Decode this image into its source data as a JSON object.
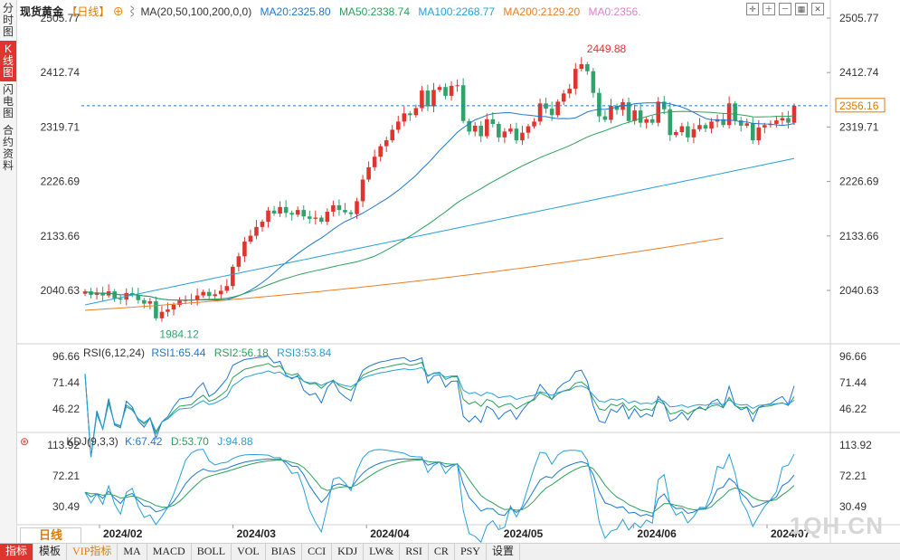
{
  "side_tabs": [
    {
      "label": "分时图"
    },
    {
      "label": "K线图",
      "active": true
    },
    {
      "label": "闪电图"
    },
    {
      "label": "合约资料"
    }
  ],
  "header": {
    "title": "现货黄金",
    "period_tag": "【日线】",
    "ma_label": "MA(20,50,100,200,0,0)",
    "ma20": "MA20:2325.80",
    "ma50": "MA50:2338.74",
    "ma100": "MA100:2268.77",
    "ma200": "MA200:2129.20",
    "ma0": "MA0:2356."
  },
  "rsi_header": {
    "label": "RSI(6,12,24)",
    "rsi1": "RSI1:65.44",
    "rsi2": "RSI2:56.18",
    "rsi3": "RSI3:53.84"
  },
  "kdj_header": {
    "label": "KDJ(9,3,3)",
    "k": "K:67.42",
    "d": "D:53.70",
    "j": "J:94.88"
  },
  "period_button": "日线",
  "watermark": "1QH.CN",
  "toolbar": [
    {
      "label": "指标",
      "style": "red"
    },
    {
      "label": "模板"
    },
    {
      "label": "VIP指标",
      "style": "orange"
    },
    {
      "label": "MA"
    },
    {
      "label": "MACD"
    },
    {
      "label": "BOLL"
    },
    {
      "label": "VOL"
    },
    {
      "label": "BIAS"
    },
    {
      "label": "CCI"
    },
    {
      "label": "KDJ"
    },
    {
      "label": "LW&"
    },
    {
      "label": "RSI"
    },
    {
      "label": "CR"
    },
    {
      "label": "PSY"
    },
    {
      "label": "设置"
    }
  ],
  "colors": {
    "up": "#e0342f",
    "down": "#2fa36b",
    "ma20": "#1f77d0",
    "ma50": "#2ca05a",
    "ma100": "#26a0d8",
    "ma200": "#ef7d22",
    "price_line": "#1f77d0"
  },
  "chart_data": {
    "type": "candlestick",
    "price_axis_ticks": [
      "2505.77",
      "2412.74",
      "2319.71",
      "2226.69",
      "2133.66",
      "2040.63"
    ],
    "price_range": [
      2505.77,
      2040.63
    ],
    "time_labels": [
      "2024/02",
      "2024/03",
      "2024/04",
      "2024/05",
      "2024/06",
      "2024/07"
    ],
    "current_price": "2356.16",
    "high_label": "2449.88",
    "low_label": "1984.12",
    "high_value": 2449.88,
    "low_value": 1984.12,
    "closes": [
      2039,
      2033,
      2037,
      2032,
      2039,
      2027,
      2025,
      2036,
      2033,
      2024,
      2018,
      2022,
      1993,
      2004,
      2008,
      2016,
      2023,
      2024,
      2025,
      2032,
      2038,
      2031,
      2034,
      2040,
      2048,
      2081,
      2099,
      2124,
      2134,
      2149,
      2158,
      2177,
      2172,
      2183,
      2173,
      2170,
      2178,
      2167,
      2163,
      2165,
      2158,
      2175,
      2186,
      2178,
      2174,
      2171,
      2193,
      2230,
      2251,
      2269,
      2287,
      2297,
      2315,
      2329,
      2343,
      2340,
      2352,
      2382,
      2355,
      2383,
      2388,
      2373,
      2390,
      2391,
      2330,
      2312,
      2322,
      2304,
      2333,
      2325,
      2302,
      2312,
      2317,
      2297,
      2310,
      2321,
      2329,
      2360,
      2351,
      2340,
      2363,
      2377,
      2385,
      2419,
      2427,
      2415,
      2378,
      2338,
      2332,
      2356,
      2349,
      2362,
      2330,
      2348,
      2327,
      2333,
      2327,
      2363,
      2350,
      2306,
      2311,
      2321,
      2302,
      2316,
      2323,
      2317,
      2329,
      2333,
      2323,
      2360,
      2331,
      2322,
      2326,
      2297,
      2319,
      2323,
      2325,
      2331,
      2335,
      2327,
      2356
    ],
    "rsi_axis_ticks": [
      "96.66",
      "71.44",
      "46.22"
    ],
    "rsi_range": [
      96.66,
      46.22
    ],
    "kdj_axis_ticks": [
      "113.92",
      "72.21",
      "30.49"
    ],
    "kdj_range": [
      113.92,
      30.49
    ]
  }
}
